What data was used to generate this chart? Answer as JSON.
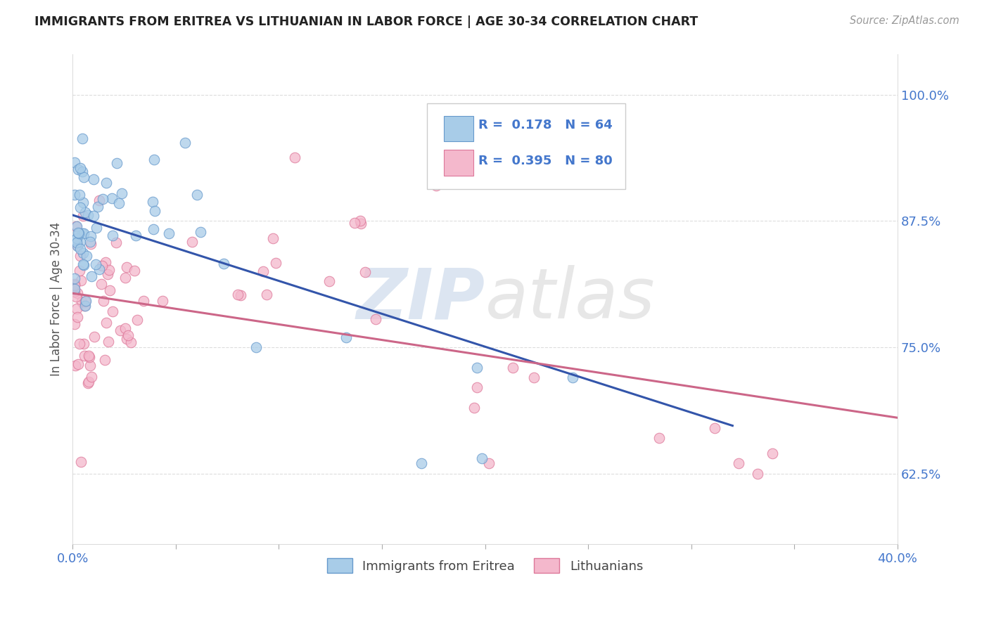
{
  "title": "IMMIGRANTS FROM ERITREA VS LITHUANIAN IN LABOR FORCE | AGE 30-34 CORRELATION CHART",
  "source": "Source: ZipAtlas.com",
  "ylabel": "In Labor Force | Age 30-34",
  "xlim": [
    0.0,
    0.4
  ],
  "ylim": [
    0.555,
    1.04
  ],
  "xtick_positions": [
    0.0,
    0.05,
    0.1,
    0.15,
    0.2,
    0.25,
    0.3,
    0.35,
    0.4
  ],
  "xticklabels": [
    "0.0%",
    "",
    "",
    "",
    "",
    "",
    "",
    "",
    "40.0%"
  ],
  "ytick_positions": [
    0.625,
    0.75,
    0.875,
    1.0
  ],
  "yticklabels": [
    "62.5%",
    "75.0%",
    "87.5%",
    "100.0%"
  ],
  "eritrea_color": "#a8cce8",
  "eritrea_edge": "#6699cc",
  "lithuanian_color": "#f4b8cc",
  "lithuanian_edge": "#dd7799",
  "trendline_eritrea_color": "#3355aa",
  "trendline_lithuanian_color": "#cc6688",
  "R_eritrea": 0.178,
  "N_eritrea": 64,
  "R_lithuanian": 0.395,
  "N_lithuanian": 80,
  "legend_label_eritrea": "Immigrants from Eritrea",
  "legend_label_lithuanian": "Lithuanians",
  "watermark": "ZIPatlas"
}
